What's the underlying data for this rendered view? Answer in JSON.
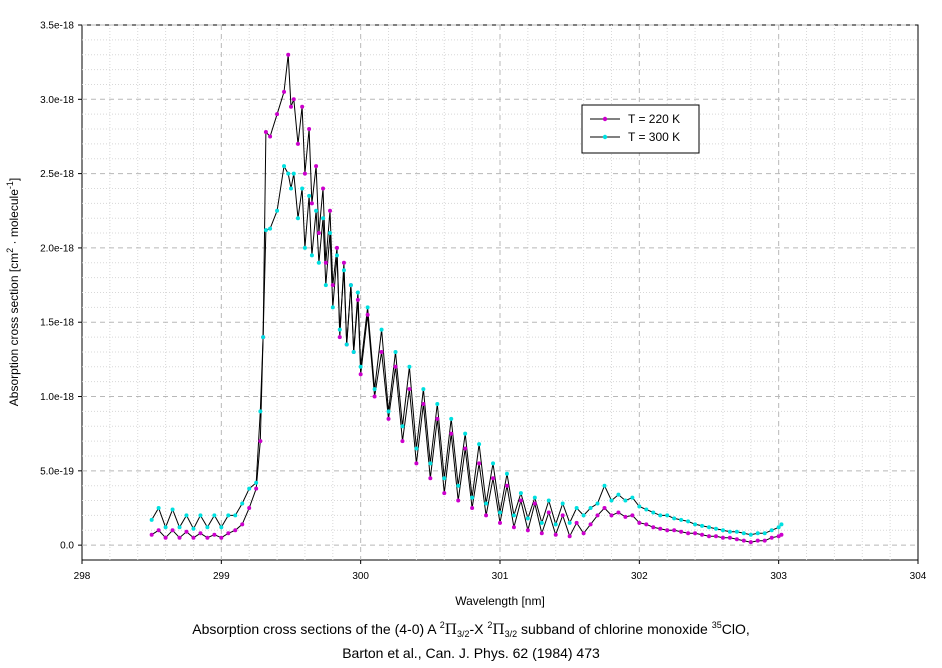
{
  "chart_data": {
    "type": "line",
    "xlabel": "Wavelength [nm]",
    "ylabel_main": "Absorption cross section [cm",
    "ylabel_exp1": "2",
    "ylabel_mid": " · molecule",
    "ylabel_exp2": "-1",
    "ylabel_end": "]",
    "xlim": [
      298,
      304
    ],
    "ylim": [
      -1e-19,
      3.5e-18
    ],
    "x_ticks": [
      298,
      299,
      300,
      301,
      302,
      303,
      304
    ],
    "x_tick_labels": [
      "298",
      "299",
      "300",
      "301",
      "302",
      "303",
      "304"
    ],
    "y_ticks": [
      0,
      5e-19,
      1e-18,
      1.5e-18,
      2e-18,
      2.5e-18,
      3e-18,
      3.5e-18
    ],
    "y_tick_labels": [
      "0.0",
      "5.0e-19",
      "1.0e-18",
      "1.5e-18",
      "2.0e-18",
      "2.5e-18",
      "3.0e-18",
      "3.5e-18"
    ],
    "legend_position": "top-right",
    "series": [
      {
        "name": "T = 220 K",
        "marker_color": "#cc00cc",
        "x": [
          298.5,
          298.55,
          298.6,
          298.65,
          298.7,
          298.75,
          298.8,
          298.85,
          298.9,
          298.95,
          299.0,
          299.05,
          299.1,
          299.15,
          299.2,
          299.25,
          299.28,
          299.3,
          299.32,
          299.35,
          299.4,
          299.45,
          299.48,
          299.5,
          299.52,
          299.55,
          299.58,
          299.6,
          299.63,
          299.65,
          299.68,
          299.7,
          299.73,
          299.75,
          299.78,
          299.8,
          299.83,
          299.85,
          299.88,
          299.9,
          299.93,
          299.95,
          299.98,
          300.0,
          300.05,
          300.1,
          300.15,
          300.2,
          300.25,
          300.3,
          300.35,
          300.4,
          300.45,
          300.5,
          300.55,
          300.6,
          300.65,
          300.7,
          300.75,
          300.8,
          300.85,
          300.9,
          300.95,
          301.0,
          301.05,
          301.1,
          301.15,
          301.2,
          301.25,
          301.3,
          301.35,
          301.4,
          301.45,
          301.5,
          301.55,
          301.6,
          301.65,
          301.7,
          301.75,
          301.8,
          301.85,
          301.9,
          301.95,
          302.0,
          302.05,
          302.1,
          302.15,
          302.2,
          302.25,
          302.3,
          302.35,
          302.4,
          302.45,
          302.5,
          302.55,
          302.6,
          302.65,
          302.7,
          302.75,
          302.8,
          302.85,
          302.9,
          302.95,
          303.0,
          303.02
        ],
        "y": [
          7e-20,
          1e-19,
          5e-20,
          1e-19,
          5e-20,
          9e-20,
          5e-20,
          8e-20,
          5e-20,
          7e-20,
          5e-20,
          8e-20,
          1e-19,
          1.4e-19,
          2.5e-19,
          3.8e-19,
          7e-19,
          1.4e-18,
          2.78e-18,
          2.75e-18,
          2.9e-18,
          3.05e-18,
          3.3e-18,
          2.95e-18,
          3e-18,
          2.7e-18,
          2.95e-18,
          2.5e-18,
          2.8e-18,
          2.3e-18,
          2.55e-18,
          2.1e-18,
          2.4e-18,
          1.9e-18,
          2.25e-18,
          1.75e-18,
          2e-18,
          1.4e-18,
          1.9e-18,
          1.35e-18,
          1.75e-18,
          1.3e-18,
          1.65e-18,
          1.15e-18,
          1.55e-18,
          1e-18,
          1.3e-18,
          8.5e-19,
          1.2e-18,
          7e-19,
          1.05e-18,
          5.5e-19,
          9.5e-19,
          4.5e-19,
          8.5e-19,
          3.5e-19,
          7.5e-19,
          3e-19,
          6.5e-19,
          2.5e-19,
          5.5e-19,
          2e-19,
          4.5e-19,
          1.5e-19,
          4e-19,
          1.2e-19,
          3e-19,
          1e-19,
          2.8e-19,
          8e-20,
          2.2e-19,
          7e-20,
          2e-19,
          6e-20,
          1.5e-19,
          8e-20,
          1.4e-19,
          2e-19,
          2.5e-19,
          2e-19,
          2.2e-19,
          1.9e-19,
          2e-19,
          1.5e-19,
          1.4e-19,
          1.2e-19,
          1.1e-19,
          1e-19,
          1e-19,
          9e-20,
          8e-20,
          8e-20,
          7e-20,
          6e-20,
          6e-20,
          5e-20,
          5e-20,
          4e-20,
          3e-20,
          2e-20,
          3e-20,
          3e-20,
          5e-20,
          6e-20,
          7e-20
        ]
      },
      {
        "name": "T = 300 K",
        "marker_color": "#00e0e0",
        "x": [
          298.5,
          298.55,
          298.6,
          298.65,
          298.7,
          298.75,
          298.8,
          298.85,
          298.9,
          298.95,
          299.0,
          299.05,
          299.1,
          299.15,
          299.2,
          299.25,
          299.28,
          299.3,
          299.32,
          299.35,
          299.4,
          299.45,
          299.48,
          299.5,
          299.52,
          299.55,
          299.58,
          299.6,
          299.63,
          299.65,
          299.68,
          299.7,
          299.73,
          299.75,
          299.78,
          299.8,
          299.83,
          299.85,
          299.88,
          299.9,
          299.93,
          299.95,
          299.98,
          300.0,
          300.05,
          300.1,
          300.15,
          300.2,
          300.25,
          300.3,
          300.35,
          300.4,
          300.45,
          300.5,
          300.55,
          300.6,
          300.65,
          300.7,
          300.75,
          300.8,
          300.85,
          300.9,
          300.95,
          301.0,
          301.05,
          301.1,
          301.15,
          301.2,
          301.25,
          301.3,
          301.35,
          301.4,
          301.45,
          301.5,
          301.55,
          301.6,
          301.65,
          301.7,
          301.75,
          301.8,
          301.85,
          301.9,
          301.95,
          302.0,
          302.05,
          302.1,
          302.15,
          302.2,
          302.25,
          302.3,
          302.35,
          302.4,
          302.45,
          302.5,
          302.55,
          302.6,
          302.65,
          302.7,
          302.75,
          302.8,
          302.85,
          302.9,
          302.95,
          303.0,
          303.02
        ],
        "y": [
          1.7e-19,
          2.5e-19,
          1.2e-19,
          2.4e-19,
          1.2e-19,
          2e-19,
          1.1e-19,
          2e-19,
          1.2e-19,
          2e-19,
          1.2e-19,
          2e-19,
          2e-19,
          2.8e-19,
          3.8e-19,
          4.2e-19,
          9e-19,
          1.4e-18,
          2.12e-18,
          2.13e-18,
          2.25e-18,
          2.55e-18,
          2.5e-18,
          2.4e-18,
          2.5e-18,
          2.2e-18,
          2.4e-18,
          2e-18,
          2.35e-18,
          1.95e-18,
          2.25e-18,
          1.9e-18,
          2.2e-18,
          1.75e-18,
          2.1e-18,
          1.6e-18,
          1.95e-18,
          1.45e-18,
          1.85e-18,
          1.35e-18,
          1.75e-18,
          1.3e-18,
          1.7e-18,
          1.2e-18,
          1.6e-18,
          1.05e-18,
          1.45e-18,
          9e-19,
          1.3e-18,
          8e-19,
          1.2e-18,
          6.5e-19,
          1.05e-18,
          5.5e-19,
          9.5e-19,
          4.5e-19,
          8.5e-19,
          4e-19,
          7.5e-19,
          3.2e-19,
          6.8e-19,
          2.8e-19,
          5.5e-19,
          2.2e-19,
          4.8e-19,
          2e-19,
          3.5e-19,
          1.8e-19,
          3.2e-19,
          1.5e-19,
          3e-19,
          1.4e-19,
          2.8e-19,
          1.5e-19,
          2.5e-19,
          2e-19,
          2.5e-19,
          2.8e-19,
          4e-19,
          3e-19,
          3.4e-19,
          3e-19,
          3.2e-19,
          2.6e-19,
          2.4e-19,
          2.2e-19,
          2e-19,
          2e-19,
          1.8e-19,
          1.7e-19,
          1.6e-19,
          1.4e-19,
          1.3e-19,
          1.2e-19,
          1.1e-19,
          1e-19,
          9e-20,
          9e-20,
          8e-20,
          7e-20,
          8e-20,
          8e-20,
          1e-19,
          1.2e-19,
          1.4e-19
        ]
      }
    ]
  },
  "caption": {
    "line1_pre": "Absorption cross sections of the (4-0) A ",
    "line1_sup_a": "2",
    "line1_pi_a": "Π",
    "line1_sub_a": "3/2",
    "line1_mid": "-X ",
    "line1_sup_b": "2",
    "line1_pi_b": "Π",
    "line1_sub_b": "3/2",
    "line1_post": " subband of chlorine monoxide ",
    "line1_sup_c": "35",
    "line1_end": "ClO,",
    "line2": "Barton et al., Can. J. Phys. 62 (1984) 473"
  }
}
